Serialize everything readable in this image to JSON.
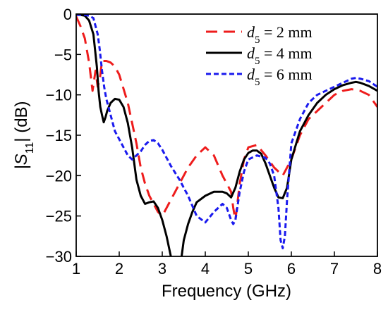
{
  "chart_data": {
    "type": "line",
    "xlabel": "Frequency (GHz)",
    "ylabel_var": "|S",
    "ylabel_sub": "11",
    "ylabel_rest": "| (dB)",
    "xlim": [
      1,
      8
    ],
    "ylim": [
      -30,
      0
    ],
    "xticks": [
      1,
      2,
      3,
      4,
      5,
      6,
      7,
      8
    ],
    "yticks": [
      0,
      -5,
      -10,
      -15,
      -20,
      -25,
      -30
    ],
    "grid": false,
    "legend_position": "top-right",
    "series": [
      {
        "name": "d5 = 2 mm",
        "legend_var": "d",
        "legend_sub": "5",
        "legend_rest": " = 2 mm",
        "color": "#ee1c1c",
        "dash": "long-dash",
        "x": [
          1.0,
          1.1,
          1.2,
          1.3,
          1.38,
          1.45,
          1.5,
          1.55,
          1.6,
          1.65,
          1.7,
          1.8,
          1.9,
          2.0,
          2.2,
          2.4,
          2.5,
          2.6,
          2.7,
          2.8,
          2.9,
          3.0,
          3.1,
          3.2,
          3.4,
          3.5,
          3.6,
          3.8,
          4.0,
          4.2,
          4.4,
          4.6,
          4.65,
          4.7,
          4.8,
          4.9,
          5.0,
          5.2,
          5.4,
          5.6,
          5.8,
          6.0,
          6.2,
          6.4,
          6.6,
          6.8,
          7.0,
          7.2,
          7.4,
          7.6,
          7.8,
          8.0
        ],
        "y": [
          -0.3,
          -1.5,
          -3.0,
          -6.0,
          -9.5,
          -7.0,
          -9.0,
          -8.0,
          -5.8,
          -5.8,
          -5.8,
          -6.0,
          -6.5,
          -7.5,
          -11.0,
          -16.0,
          -19.0,
          -21.0,
          -22.5,
          -23.5,
          -24.5,
          -25.0,
          -24.0,
          -23.0,
          -21.0,
          -20.0,
          -19.0,
          -17.5,
          -16.5,
          -17.5,
          -20.0,
          -22.0,
          -24.0,
          -25.5,
          -21.0,
          -18.0,
          -16.5,
          -16.2,
          -17.5,
          -19.0,
          -20.0,
          -18.0,
          -15.0,
          -13.0,
          -12.0,
          -11.0,
          -10.0,
          -9.5,
          -9.3,
          -9.5,
          -10.0,
          -11.5
        ]
      },
      {
        "name": "d5 = 4 mm",
        "legend_var": "d",
        "legend_sub": "5",
        "legend_rest": " = 4 mm",
        "color": "#000000",
        "dash": "solid",
        "x": [
          1.0,
          1.1,
          1.2,
          1.3,
          1.4,
          1.48,
          1.52,
          1.56,
          1.6,
          1.64,
          1.68,
          1.72,
          1.8,
          1.9,
          2.0,
          2.1,
          2.2,
          2.3,
          2.4,
          2.5,
          2.6,
          2.7,
          2.8,
          2.9,
          3.0,
          3.1,
          3.2,
          3.25,
          3.3,
          3.4,
          3.45,
          3.5,
          3.6,
          3.7,
          3.8,
          4.0,
          4.2,
          4.4,
          4.5,
          4.6,
          4.7,
          4.8,
          4.9,
          5.0,
          5.1,
          5.2,
          5.3,
          5.4,
          5.5,
          5.6,
          5.7,
          5.8,
          5.9,
          6.0,
          6.2,
          6.4,
          6.6,
          6.8,
          7.0,
          7.2,
          7.4,
          7.5,
          7.6,
          7.8,
          8.0
        ],
        "y": [
          -0.1,
          -0.1,
          -0.2,
          -0.8,
          -2.5,
          -6.5,
          -9.5,
          -11.5,
          -12.5,
          -13.4,
          -12.8,
          -12.0,
          -11.0,
          -10.5,
          -10.6,
          -11.5,
          -13.5,
          -16.5,
          -20.5,
          -22.5,
          -23.5,
          -23.3,
          -23.2,
          -24.0,
          -25.5,
          -27.5,
          -30.0,
          -31.0,
          -31.0,
          -30.5,
          -30.0,
          -28.0,
          -26.0,
          -24.5,
          -23.3,
          -22.5,
          -22.0,
          -22.0,
          -22.2,
          -22.7,
          -21.5,
          -19.5,
          -18.0,
          -17.2,
          -16.9,
          -16.9,
          -17.3,
          -18.5,
          -20.0,
          -21.5,
          -22.7,
          -22.8,
          -21.5,
          -18.0,
          -14.5,
          -12.5,
          -11.0,
          -10.0,
          -9.3,
          -8.8,
          -8.5,
          -8.4,
          -8.5,
          -8.9,
          -9.5
        ]
      },
      {
        "name": "d5 = 6 mm",
        "legend_var": "d",
        "legend_sub": "5",
        "legend_rest": " = 6 mm",
        "color": "#1a1aee",
        "dash": "short-dash",
        "x": [
          1.0,
          1.1,
          1.2,
          1.3,
          1.4,
          1.5,
          1.55,
          1.6,
          1.65,
          1.7,
          1.8,
          1.9,
          2.0,
          2.1,
          2.2,
          2.3,
          2.4,
          2.5,
          2.6,
          2.7,
          2.8,
          2.9,
          3.0,
          3.2,
          3.4,
          3.6,
          3.8,
          4.0,
          4.2,
          4.4,
          4.5,
          4.6,
          4.65,
          4.7,
          4.8,
          4.9,
          5.0,
          5.2,
          5.4,
          5.5,
          5.6,
          5.7,
          5.75,
          5.8,
          5.85,
          5.9,
          6.0,
          6.2,
          6.4,
          6.6,
          6.8,
          7.0,
          7.2,
          7.4,
          7.5,
          7.6,
          7.8,
          8.0
        ],
        "y": [
          -0.1,
          -0.1,
          -0.1,
          -0.2,
          -0.5,
          -2.5,
          -4.5,
          -7.0,
          -9.0,
          -10.5,
          -12.5,
          -14.5,
          -15.5,
          -16.5,
          -17.5,
          -18.0,
          -17.5,
          -17.0,
          -16.2,
          -15.7,
          -15.6,
          -16.0,
          -16.8,
          -18.8,
          -20.5,
          -22.5,
          -25.0,
          -25.8,
          -24.5,
          -23.5,
          -24.0,
          -25.5,
          -26.0,
          -25.5,
          -22.0,
          -19.5,
          -18.0,
          -17.5,
          -17.8,
          -18.5,
          -20.0,
          -24.0,
          -28.0,
          -29.0,
          -27.5,
          -23.0,
          -16.0,
          -13.0,
          -11.0,
          -10.0,
          -9.5,
          -9.0,
          -8.5,
          -8.0,
          -7.9,
          -8.0,
          -8.3,
          -9.0
        ]
      }
    ]
  }
}
